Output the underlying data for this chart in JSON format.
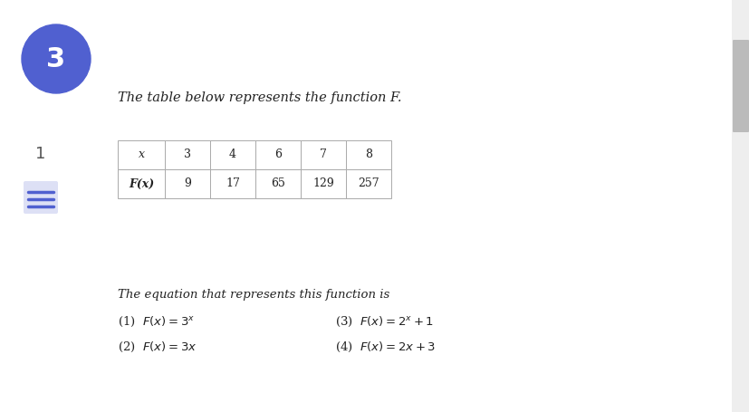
{
  "question_number": "3",
  "question_number_bg": "#5060D0",
  "side_number": "1",
  "background_color": "#ffffff",
  "prompt": "The table below represents the function F.",
  "table_x_label": "x",
  "table_x_values": [
    "3",
    "4",
    "6",
    "7",
    "8"
  ],
  "table_fx_label": "F(x)",
  "table_fx_values": [
    "9",
    "17",
    "65",
    "129",
    "257"
  ],
  "question_text": "The equation that represents this function is",
  "scrollbar_color": "#aaaaaa",
  "font_color": "#222222",
  "icon_color": "#5060D0"
}
